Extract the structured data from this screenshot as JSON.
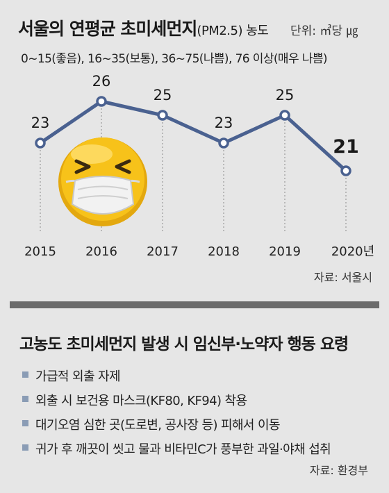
{
  "header": {
    "title_main": "서울의 연평균 초미세먼지",
    "title_sub": "(PM2.5) 농도",
    "unit": "단위: ㎥당 ㎍",
    "legend": "0~15(좋음), 16~35(보통), 36~75(나쁨), 76 이상(매우 나쁨)"
  },
  "chart_data": {
    "type": "line",
    "categories": [
      "2015",
      "2016",
      "2017",
      "2018",
      "2019",
      "2020년"
    ],
    "values": [
      23,
      26,
      25,
      23,
      25,
      21
    ],
    "data_labels": [
      "23",
      "26",
      "25",
      "23",
      "25",
      "21"
    ],
    "title": "서울의 연평균 초미세먼지(PM2.5) 농도",
    "xlabel": "",
    "ylabel": "",
    "grid": false,
    "line_color": "#4a6190",
    "marker_fill": "#ffffff"
  },
  "source_top": "자료: 서울시",
  "tips": {
    "title": "고농도 초미세먼지 발생 시 임신부·노약자 행동 요령",
    "items": [
      "가급적 외출 자제",
      "외출 시 보건용 마스크(KF80, KF94) 착용",
      "대기오염 심한 곳(도로변, 공사장 등) 피해서 이동",
      "귀가 후 깨끗이 씻고 물과 비타민C가 풍부한 과일·야채 섭취"
    ],
    "bullet_color": "#8a9cb5"
  },
  "source_bottom": "자료: 환경부",
  "illustration": {
    "icon": "face-with-mask-emoji",
    "face_color": "#f7c21a",
    "mask_color": "#f2f2f2"
  }
}
